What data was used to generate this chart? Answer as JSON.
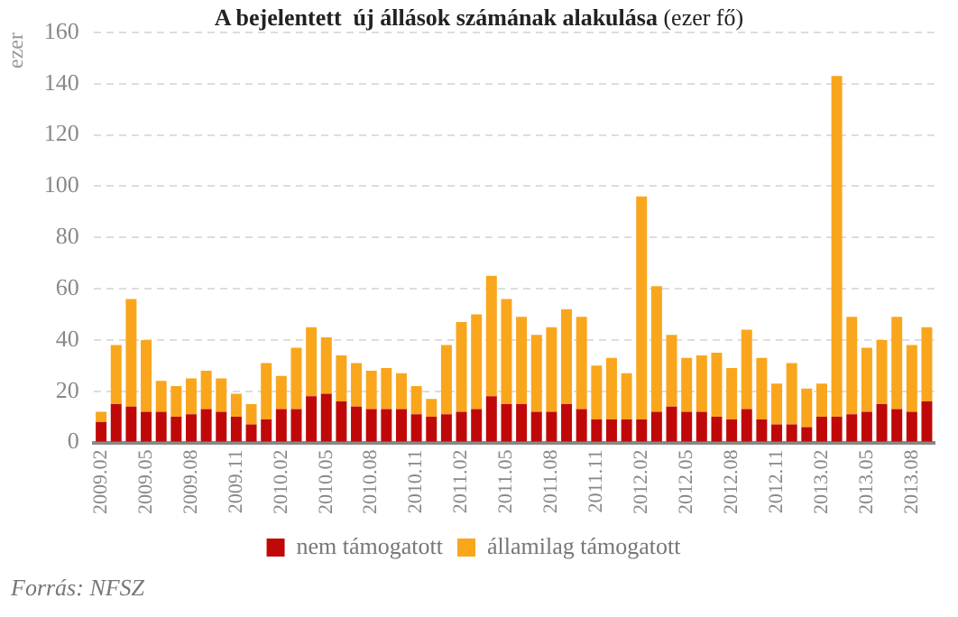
{
  "chart_data": {
    "type": "bar",
    "title": "A bejelentett  új állások számának alakulása",
    "subtitle": "(ezer fő)",
    "ylabel": "ezer",
    "stacked": true,
    "grid": "y",
    "legend": "bottom",
    "categories": [
      "2009.02",
      null,
      null,
      "2009.05",
      null,
      null,
      "2009.08",
      null,
      null,
      "2009.11",
      null,
      null,
      "2010.02",
      null,
      null,
      "2010.05",
      null,
      null,
      "2010.08",
      null,
      null,
      "2010.11",
      null,
      null,
      "2011.02",
      null,
      null,
      "2011.05",
      null,
      null,
      "2011.08",
      null,
      null,
      "2011.11",
      null,
      null,
      "2012.02",
      null,
      null,
      "2012.05",
      null,
      null,
      "2012.08",
      null,
      null,
      "2012.11",
      null,
      null,
      "2013.02",
      null,
      null,
      "2013.05",
      null,
      null,
      "2013.08",
      null
    ],
    "series": [
      {
        "name": "nem támogatott",
        "color": "#c00808",
        "values": [
          8,
          15,
          14,
          12,
          12,
          10,
          11,
          13,
          12,
          10,
          7,
          9,
          13,
          13,
          18,
          19,
          16,
          14,
          13,
          13,
          13,
          11,
          10,
          11,
          12,
          13,
          18,
          15,
          15,
          12,
          12,
          15,
          13,
          9,
          9,
          9,
          9,
          12,
          14,
          12,
          12,
          10,
          9,
          13,
          9,
          7,
          7,
          6,
          10,
          10,
          11,
          12,
          15,
          13,
          12,
          16
        ]
      },
      {
        "name": "államilag támogatott",
        "color": "#f9a61d",
        "values": [
          4,
          23,
          42,
          28,
          12,
          12,
          14,
          15,
          13,
          9,
          8,
          22,
          13,
          24,
          27,
          22,
          18,
          17,
          15,
          16,
          14,
          11,
          7,
          27,
          35,
          37,
          47,
          41,
          34,
          30,
          33,
          37,
          36,
          21,
          24,
          18,
          87,
          49,
          28,
          21,
          22,
          25,
          20,
          31,
          24,
          16,
          24,
          15,
          13,
          133,
          38,
          25,
          25,
          36,
          26,
          29
        ]
      }
    ],
    "ylim": [
      0,
      160
    ],
    "yticks": [
      0,
      20,
      40,
      60,
      80,
      100,
      120,
      140,
      160
    ],
    "annotations": [
      "Forrás: NFSZ"
    ]
  }
}
